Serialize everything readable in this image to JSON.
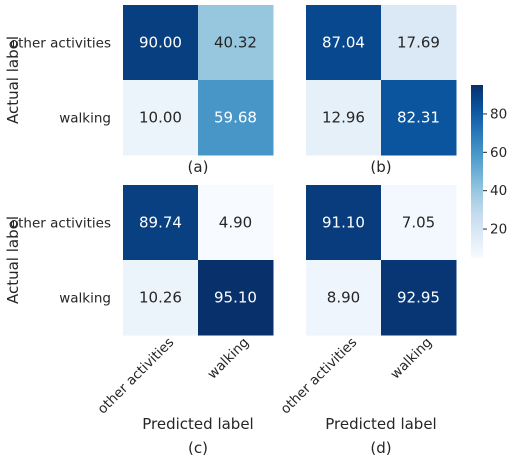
{
  "chart_data": {
    "type": "heatmap",
    "colormap": "Blues",
    "row_labels": [
      "other activities",
      "walking"
    ],
    "col_labels": [
      "other activities",
      "walking"
    ],
    "ylabel": "Actual label",
    "xlabel": "Predicted label",
    "colorbar": {
      "min": 4.9,
      "max": 95.1,
      "ticks": [
        20,
        40,
        60,
        80
      ]
    },
    "panels": [
      {
        "caption": "(a)",
        "values": [
          [
            "90.00",
            "40.32"
          ],
          [
            "10.00",
            "59.68"
          ]
        ]
      },
      {
        "caption": "(b)",
        "values": [
          [
            "87.04",
            "17.69"
          ],
          [
            "12.96",
            "82.31"
          ]
        ]
      },
      {
        "caption": "(c)",
        "values": [
          [
            "89.74",
            "4.90"
          ],
          [
            "10.26",
            "95.10"
          ]
        ]
      },
      {
        "caption": "(d)",
        "values": [
          [
            "91.10",
            "7.05"
          ],
          [
            "8.90",
            "92.95"
          ]
        ]
      }
    ]
  }
}
